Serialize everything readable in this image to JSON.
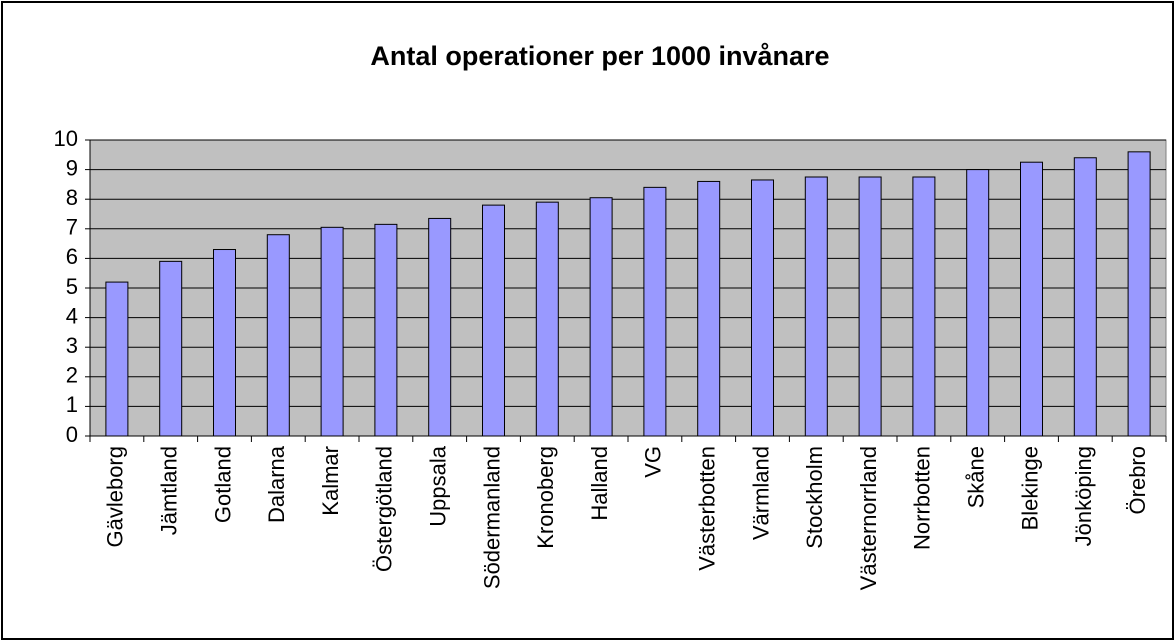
{
  "chart_data": {
    "type": "bar",
    "title": "Antal operationer per 1000 invånare",
    "categories": [
      "Gävleborg",
      "Jämtland",
      "Gotland",
      "Dalarna",
      "Kalmar",
      "Östergötland",
      "Uppsala",
      "Södermanland",
      "Kronoberg",
      "Halland",
      "VG",
      "Västerbotten",
      "Värmland",
      "Stockholm",
      "Västernorrland",
      "Norrbotten",
      "Skåne",
      "Blekinge",
      "Jönköping",
      "Örebro"
    ],
    "values": [
      5.2,
      5.9,
      6.3,
      6.8,
      7.05,
      7.15,
      7.35,
      7.8,
      7.9,
      8.05,
      8.4,
      8.6,
      8.65,
      8.75,
      8.75,
      8.75,
      9.0,
      9.25,
      9.4,
      9.6
    ],
    "color": "#9999ff",
    "ylim": [
      0,
      10
    ],
    "yticks": [
      0,
      1,
      2,
      3,
      4,
      5,
      6,
      7,
      8,
      9,
      10
    ],
    "grid": true
  }
}
